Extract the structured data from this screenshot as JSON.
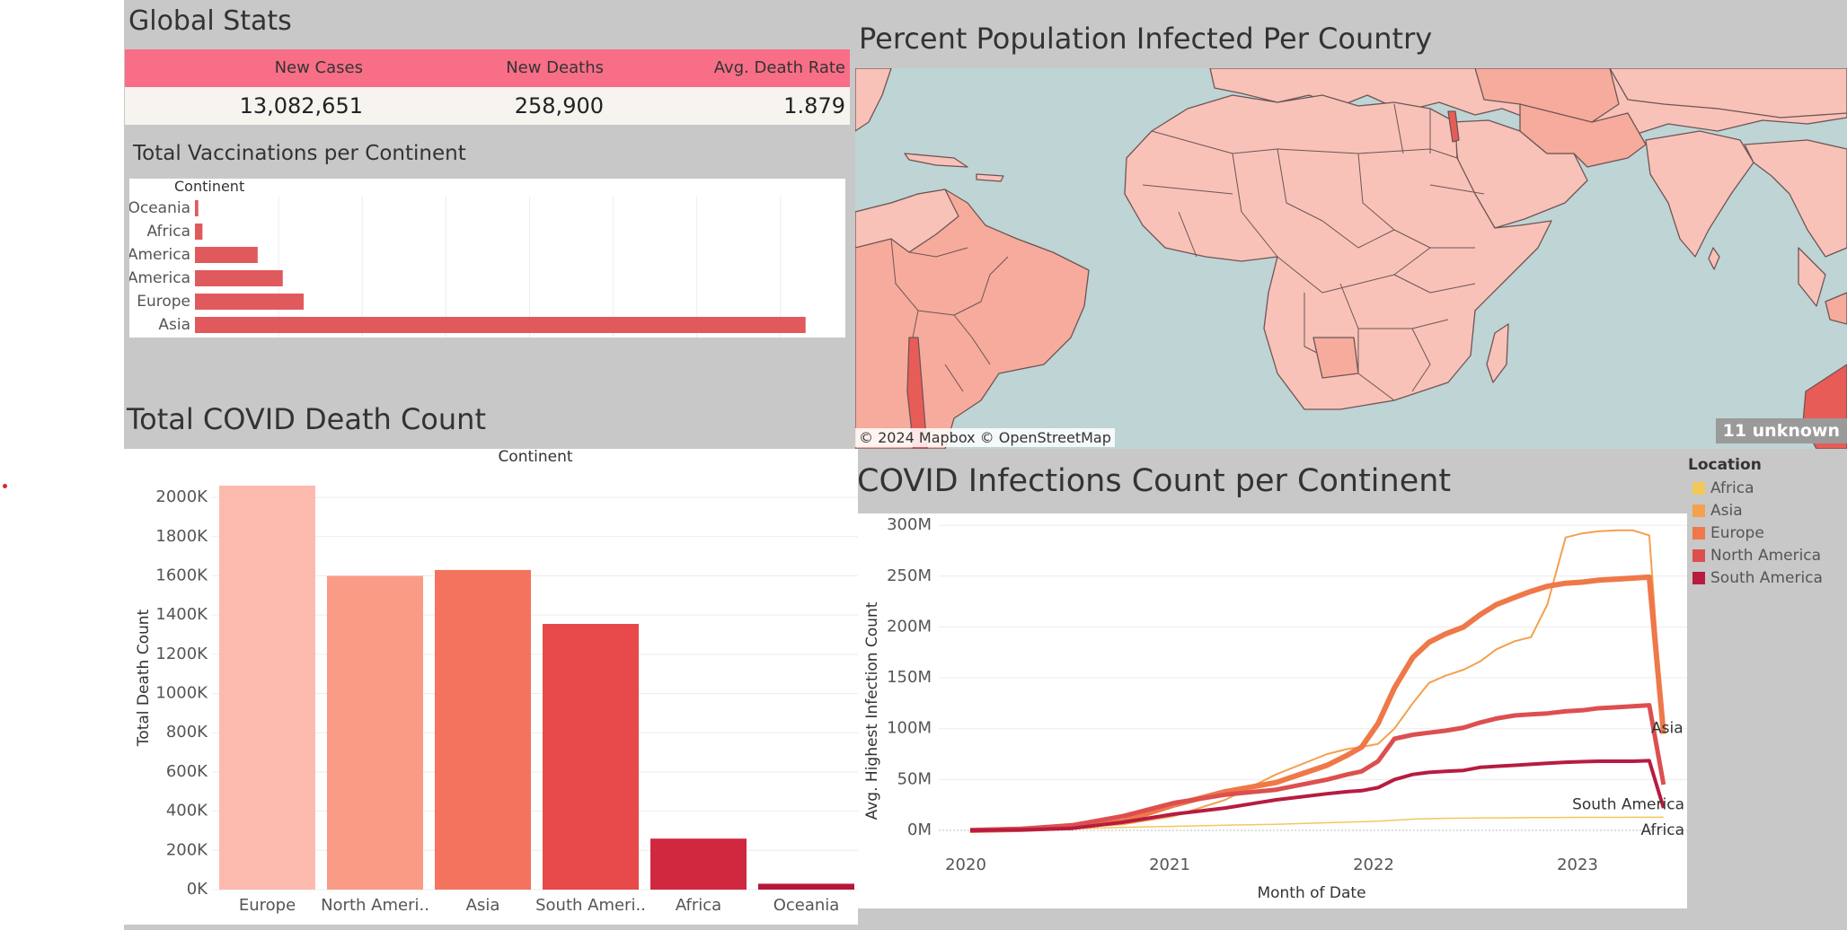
{
  "global_stats": {
    "title": "Global Stats",
    "headers": [
      "New Cases",
      "New Deaths",
      "Avg. Death Rate"
    ],
    "values": [
      "13,082,651",
      "258,900",
      "1.879"
    ],
    "header_color": "#f86e87"
  },
  "vaccinations": {
    "title": "Total Vaccinations per Continent",
    "column_header": "Continent"
  },
  "map": {
    "title": "Percent Population Infected Per Country",
    "attribution": "© 2024 Mapbox © OpenStreetMap",
    "unknown_badge": "11 unknown",
    "ocean_color": "#bfd4d4",
    "land_color": "#f8c2b9"
  },
  "death_count": {
    "title": "Total COVID Death Count",
    "column_header": "Continent"
  },
  "infections": {
    "title": "COVID Infections Count per Continent",
    "legend_title": "Location"
  },
  "chart_data": [
    {
      "type": "bar",
      "orientation": "horizontal",
      "title": "Total Vaccinations per Continent",
      "categories": [
        "Oceania",
        "Africa",
        "South America",
        "North America",
        "Europe",
        "Asia"
      ],
      "values": [
        0.4,
        0.9,
        7.5,
        10.5,
        13,
        73
      ],
      "xlim": [
        0,
        77
      ],
      "grid": true,
      "bar_color": "#e05a5d"
    },
    {
      "type": "bar",
      "title": "Total COVID Death Count",
      "categories": [
        "Europe",
        "North Ameri..",
        "Asia",
        "South Ameri..",
        "Africa",
        "Oceania"
      ],
      "values": [
        2060,
        1600,
        1630,
        1355,
        260,
        30
      ],
      "ylabel": "Total Death Count",
      "ylim": [
        0,
        2060
      ],
      "yticks": [
        0,
        200,
        400,
        600,
        800,
        1000,
        1200,
        1400,
        1600,
        1800,
        2000
      ],
      "ytick_labels": [
        "0K",
        "200K",
        "400K",
        "600K",
        "800K",
        "1000K",
        "1200K",
        "1400K",
        "1600K",
        "1800K",
        "2000K"
      ],
      "colors": [
        "#fcbaaf",
        "#fa9b86",
        "#f4735f",
        "#e8494a",
        "#d0283e",
        "#b5163a"
      ],
      "grid": true
    },
    {
      "type": "line",
      "title": "COVID Infections Count per Continent",
      "xlabel": "Month of Date",
      "ylabel": "Avg. Highest Infection Count",
      "xlim": [
        2020.0,
        2023.5
      ],
      "ylim": [
        -5,
        305
      ],
      "xticks": [
        2020,
        2021,
        2022,
        2023
      ],
      "xtick_labels": [
        "2020",
        "2021",
        "2022",
        "2023"
      ],
      "yticks": [
        0,
        50,
        100,
        150,
        200,
        250,
        300
      ],
      "ytick_labels": [
        "0M",
        "50M",
        "100M",
        "150M",
        "200M",
        "250M",
        "300M"
      ],
      "legend_position": "right",
      "x": [
        2020.0,
        2020.25,
        2020.5,
        2020.75,
        2021.0,
        2021.25,
        2021.5,
        2021.75,
        2021.85,
        2021.92,
        2022.0,
        2022.08,
        2022.17,
        2022.25,
        2022.33,
        2022.42,
        2022.5,
        2022.58,
        2022.67,
        2022.75,
        2022.83,
        2022.92,
        2023.0,
        2023.08,
        2023.17,
        2023.25,
        2023.33
      ],
      "series": [
        {
          "name": "Africa",
          "color": "#f2c85b",
          "width": 1.5,
          "values": [
            0,
            0.3,
            1.5,
            3,
            4,
            5,
            6,
            7.5,
            8,
            8.5,
            9,
            10,
            11,
            11.5,
            11.8,
            12,
            12.2,
            12.3,
            12.4,
            12.5,
            12.6,
            12.7,
            12.8,
            12.8,
            12.8,
            12.9,
            12.9
          ]
        },
        {
          "name": "Asia",
          "color": "#f4a04d",
          "width": 2,
          "values": [
            0,
            0.5,
            3,
            6,
            14,
            30,
            55,
            75,
            80,
            82,
            85,
            100,
            125,
            145,
            152,
            158,
            166,
            178,
            186,
            190,
            222,
            288,
            292,
            294,
            295,
            295,
            290
          ]
        },
        {
          "name": "Europe",
          "color": "#ef7849",
          "width": 6,
          "values": [
            0,
            1,
            3,
            9,
            25,
            38,
            47,
            64,
            74,
            82,
            105,
            140,
            170,
            185,
            193,
            200,
            212,
            222,
            229,
            235,
            240,
            243,
            244,
            246,
            247,
            248,
            249
          ]
        },
        {
          "name": "North America",
          "color": "#dd4f4f",
          "width": 5,
          "values": [
            0,
            1.5,
            5,
            14,
            27,
            35,
            40,
            50,
            55,
            58,
            68,
            90,
            94,
            96,
            98,
            101,
            106,
            110,
            113,
            114,
            115,
            117,
            118,
            120,
            121,
            122,
            123
          ]
        },
        {
          "name": "South America",
          "color": "#b61c40",
          "width": 4,
          "values": [
            0,
            0.5,
            2,
            8,
            16,
            22,
            30,
            36,
            38,
            39,
            42,
            50,
            55,
            57,
            58,
            59,
            62,
            63,
            64,
            65,
            66,
            67,
            67.5,
            68,
            68,
            68,
            68.5
          ]
        }
      ],
      "end_labels": [
        "Asia",
        "South America",
        "Africa"
      ]
    }
  ]
}
